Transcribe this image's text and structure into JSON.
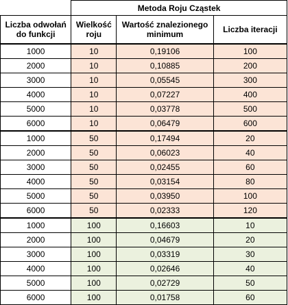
{
  "table": {
    "title": "Metoda Roju Cząstek",
    "headers": [
      "Liczba odwołań do funkcji",
      "Wielkość roju",
      "Wartość znalezionego minimum",
      "Liczba iteracji"
    ],
    "colors": {
      "group1": "#fce4d6",
      "group2": "#fce4d6",
      "group3": "#ebf1de"
    },
    "groups": [
      {
        "rows": [
          [
            "1000",
            "10",
            "0,19106",
            "100"
          ],
          [
            "2000",
            "10",
            "0,10885",
            "200"
          ],
          [
            "3000",
            "10",
            "0,05545",
            "300"
          ],
          [
            "4000",
            "10",
            "0,07227",
            "400"
          ],
          [
            "5000",
            "10",
            "0,03778",
            "500"
          ],
          [
            "6000",
            "10",
            "0,06479",
            "600"
          ]
        ]
      },
      {
        "rows": [
          [
            "1000",
            "50",
            "0,17494",
            "20"
          ],
          [
            "2000",
            "50",
            "0,06023",
            "40"
          ],
          [
            "3000",
            "50",
            "0,02455",
            "60"
          ],
          [
            "4000",
            "50",
            "0,03154",
            "80"
          ],
          [
            "5000",
            "50",
            "0,03950",
            "100"
          ],
          [
            "6000",
            "50",
            "0,02333",
            "120"
          ]
        ]
      },
      {
        "rows": [
          [
            "1000",
            "100",
            "0,16603",
            "10"
          ],
          [
            "2000",
            "100",
            "0,04679",
            "20"
          ],
          [
            "3000",
            "100",
            "0,03319",
            "30"
          ],
          [
            "4000",
            "100",
            "0,02646",
            "40"
          ],
          [
            "5000",
            "100",
            "0,02729",
            "50"
          ],
          [
            "6000",
            "100",
            "0,01758",
            "60"
          ]
        ]
      }
    ]
  }
}
